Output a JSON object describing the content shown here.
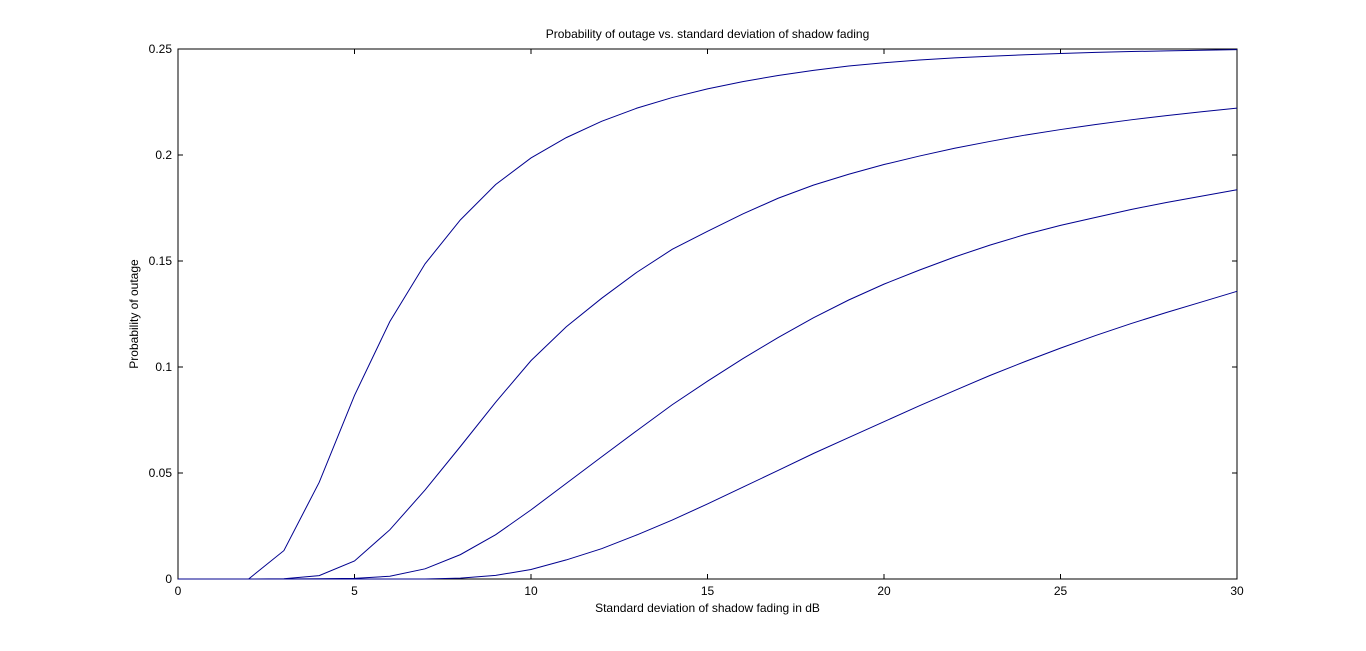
{
  "chart_data": {
    "type": "line",
    "title": "Probability of outage vs. standard deviation of shadow fading",
    "xlabel": "Standard deviation of shadow fading in dB",
    "ylabel": "Probability of outage",
    "xlim": [
      0,
      30
    ],
    "ylim": [
      0,
      0.25
    ],
    "xticks": [
      0,
      5,
      10,
      15,
      20,
      25,
      30
    ],
    "yticks": [
      0,
      0.05,
      0.1,
      0.15,
      0.2,
      0.25
    ],
    "xtick_labels": [
      "0",
      "5",
      "10",
      "15",
      "20",
      "25",
      "30"
    ],
    "ytick_labels": [
      "0",
      "0.05",
      "0.1",
      "0.15",
      "0.2",
      "0.25"
    ],
    "grid": false,
    "line_color": "#00008f",
    "x": [
      0,
      1,
      2,
      3,
      4,
      5,
      6,
      7,
      8,
      9,
      10,
      11,
      12,
      13,
      14,
      15,
      16,
      17,
      18,
      19,
      20,
      21,
      22,
      23,
      24,
      25,
      26,
      27,
      28,
      29,
      30
    ],
    "series": [
      {
        "values": [
          0,
          0,
          0,
          0.0134,
          0.0456,
          0.0866,
          0.1214,
          0.1487,
          0.1694,
          0.1861,
          0.1986,
          0.2082,
          0.2159,
          0.2221,
          0.2271,
          0.2312,
          0.2346,
          0.2375,
          0.2399,
          0.242,
          0.2435,
          0.2448,
          0.2458,
          0.2466,
          0.2473,
          0.2479,
          0.2484,
          0.2488,
          0.2491,
          0.2494,
          0.2497
        ]
      },
      {
        "values": [
          0,
          0,
          0,
          0.0001,
          0.0016,
          0.0085,
          0.0232,
          0.042,
          0.0625,
          0.0834,
          0.103,
          0.119,
          0.1324,
          0.1447,
          0.1555,
          0.164,
          0.1722,
          0.1796,
          0.1858,
          0.1909,
          0.1955,
          0.1995,
          0.2032,
          0.2064,
          0.2094,
          0.212,
          0.2144,
          0.2166,
          0.2186,
          0.2204,
          0.2221
        ]
      },
      {
        "values": [
          0,
          0,
          0,
          0,
          0.0001,
          0.0003,
          0.0013,
          0.0048,
          0.0115,
          0.0209,
          0.0326,
          0.0451,
          0.0576,
          0.07,
          0.0822,
          0.0933,
          0.1039,
          0.1139,
          0.1232,
          0.1316,
          0.1391,
          0.1457,
          0.1519,
          0.1575,
          0.1625,
          0.1668,
          0.1706,
          0.1743,
          0.1776,
          0.1806,
          0.1836
        ]
      },
      {
        "values": [
          0,
          0,
          0,
          0,
          0,
          0,
          0,
          0,
          0.0004,
          0.0017,
          0.0045,
          0.009,
          0.0143,
          0.0208,
          0.0278,
          0.0354,
          0.0433,
          0.0512,
          0.0592,
          0.0667,
          0.0742,
          0.0817,
          0.0889,
          0.096,
          0.1026,
          0.1089,
          0.1149,
          0.1205,
          0.1257,
          0.1307,
          0.1357
        ]
      }
    ]
  }
}
